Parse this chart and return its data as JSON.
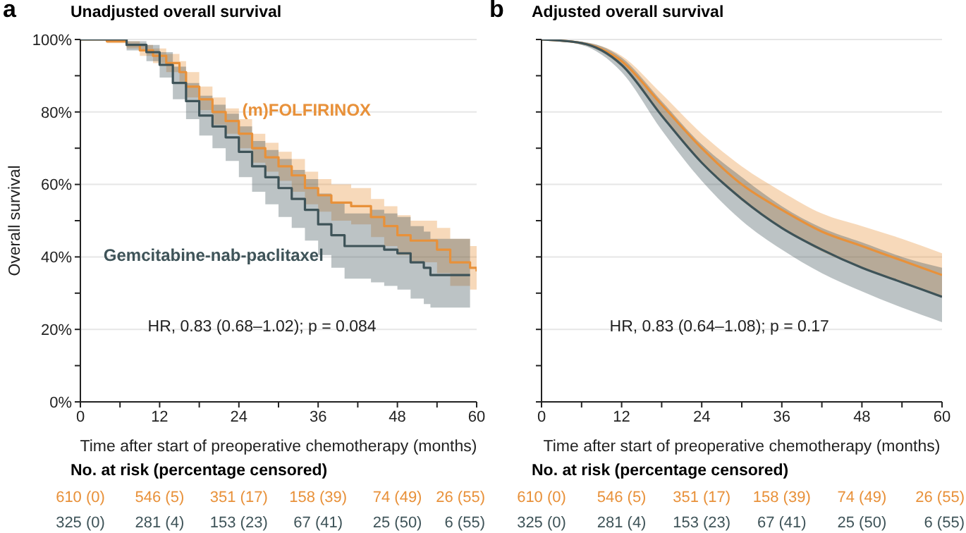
{
  "chart_data": [
    {
      "type": "step",
      "title": "Unadjusted overall survival",
      "xlabel": "Time after start of preoperative chemotherapy (months)",
      "ylabel": "Overall survival",
      "annotations": [
        "a",
        "HR, 0.83 (0.68–1.02); p = 0.084",
        "No. at risk (percentage censored)",
        "610 (0)",
        "546 (5)",
        "351 (17)",
        "158 (39)",
        "74 (49)",
        "26 (55)",
        "325 (0)",
        "281 (4)",
        "153 (23)",
        "67 (41)",
        "25 (50)",
        "6 (55)"
      ],
      "xlim": [
        0,
        60
      ],
      "xticks": [
        0,
        {
          "value": 6,
          "label": null
        },
        12,
        {
          "value": 18,
          "label": null
        },
        24,
        {
          "value": 30,
          "label": null
        },
        36,
        {
          "value": 42,
          "label": null
        },
        48,
        {
          "value": 54,
          "label": null
        },
        60
      ],
      "ylim": [
        0,
        100
      ],
      "yticks": [
        {
          "value": 0,
          "label": "0%"
        },
        {
          "value": 10,
          "label": null
        },
        {
          "value": 20,
          "label": "20%"
        },
        {
          "value": 30,
          "label": null
        },
        {
          "value": 40,
          "label": "40%"
        },
        {
          "value": 50,
          "label": null
        },
        {
          "value": 60,
          "label": "60%"
        },
        {
          "value": 70,
          "label": null
        },
        {
          "value": 80,
          "label": "80%"
        },
        {
          "value": 90,
          "label": null
        },
        {
          "value": 100,
          "label": "100%"
        }
      ],
      "grid": "y",
      "series": [
        {
          "name": "(m)FOLFIRINOX",
          "color": "#e8913a",
          "x": [
            0,
            4,
            7,
            9,
            11,
            13,
            15,
            16,
            18,
            20,
            22,
            24,
            26,
            28,
            30,
            32,
            34,
            36,
            38,
            41,
            44,
            46,
            48,
            50,
            54,
            56,
            59,
            60
          ],
          "values": [
            100,
            99.5,
            98.5,
            97,
            95.5,
            93.5,
            91,
            87,
            83.5,
            80,
            77.5,
            74,
            70,
            67.5,
            65,
            62.5,
            59,
            57,
            55,
            54,
            51,
            48.5,
            46,
            44.5,
            42,
            38.5,
            37,
            36
          ],
          "lower": [
            100,
            99,
            97.5,
            95.5,
            93.5,
            91,
            88,
            84,
            80.5,
            76.5,
            74,
            70,
            66,
            63.5,
            61,
            58,
            54.5,
            52.5,
            50,
            49,
            45.5,
            43,
            40.5,
            38.5,
            35.5,
            32,
            31,
            30
          ],
          "upper": [
            100,
            100,
            99.5,
            98.5,
            97.5,
            96,
            94,
            91,
            87,
            84,
            81,
            78,
            74,
            71.5,
            69,
            67,
            63.5,
            61.5,
            60,
            59,
            56,
            54,
            51.5,
            50,
            48,
            45,
            43,
            42
          ]
        },
        {
          "name": "Gemcitabine-nab-paclitaxel",
          "color": "#3e5358",
          "x": [
            0,
            7,
            10,
            12,
            14,
            16,
            18,
            20,
            22,
            24,
            26,
            28,
            30,
            32,
            34,
            36,
            38,
            40,
            44,
            46,
            48,
            50,
            52,
            53,
            59
          ],
          "values": [
            100,
            98.5,
            96.5,
            93,
            88,
            83,
            79,
            76,
            73,
            69,
            65,
            62,
            59,
            56,
            53,
            49,
            46,
            43,
            43,
            42,
            41,
            38.5,
            37,
            35,
            35
          ],
          "lower": [
            100,
            97,
            94,
            89.5,
            83.5,
            78,
            73.5,
            70,
            66.5,
            62,
            58,
            54.5,
            51,
            48,
            44.5,
            40.5,
            37,
            34,
            33,
            32,
            31,
            28.5,
            27,
            26,
            26
          ],
          "upper": [
            100,
            99.5,
            98.5,
            96.5,
            92.5,
            88,
            84.5,
            82,
            79.5,
            76,
            72,
            69.5,
            67,
            64,
            61.5,
            57.5,
            55,
            52,
            53,
            52,
            51,
            48.5,
            47,
            45,
            45
          ]
        }
      ]
    },
    {
      "type": "line",
      "title": "Adjusted overall survival",
      "xlabel": "Time after start of preoperative chemotherapy (months)",
      "tick_labels": "x",
      "annotations": [
        "b",
        "HR, 0.83 (0.64–1.08); p = 0.17",
        "No. at risk (percentage censored)",
        "610 (0)",
        "546 (5)",
        "351 (17)",
        "158 (39)",
        "74 (49)",
        "26 (55)",
        "325 (0)",
        "281 (4)",
        "153 (23)",
        "67 (41)",
        "25 (50)",
        "6 (55)"
      ],
      "xlim": [
        0,
        60
      ],
      "xticks": [
        0,
        {
          "value": 6,
          "label": null
        },
        12,
        {
          "value": 18,
          "label": null
        },
        24,
        {
          "value": 30,
          "label": null
        },
        36,
        {
          "value": 42,
          "label": null
        },
        48,
        {
          "value": 54,
          "label": null
        },
        60
      ],
      "ylim": [
        0,
        100
      ],
      "yticks": [
        0,
        10,
        20,
        30,
        40,
        50,
        60,
        70,
        80,
        90,
        100
      ],
      "grid": "y",
      "series": [
        {
          "color": "#e8913a",
          "x": [
            0,
            6,
            12,
            18,
            24,
            30,
            36,
            42,
            48,
            54,
            60
          ],
          "values": [
            100,
            99,
            94,
            82,
            70,
            60,
            53,
            47,
            43,
            39,
            35
          ],
          "lower": [
            100,
            98.8,
            92.5,
            79,
            66,
            55.5,
            48,
            41.5,
            37,
            33,
            29
          ],
          "upper": [
            100,
            99.3,
            95.5,
            85,
            74,
            65,
            58,
            52,
            48.5,
            45,
            41
          ]
        },
        {
          "color": "#3e5358",
          "x": [
            0,
            6,
            12,
            18,
            24,
            30,
            36,
            42,
            48,
            54,
            60
          ],
          "values": [
            100,
            99,
            93,
            79,
            66,
            56,
            48,
            42,
            37,
            33,
            29
          ],
          "lower": [
            100,
            98.5,
            91,
            75,
            61,
            50,
            42,
            35.5,
            30.5,
            26,
            22
          ],
          "upper": [
            100,
            99.4,
            95,
            83,
            71,
            62,
            54,
            48,
            44,
            40,
            37
          ]
        }
      ]
    }
  ]
}
